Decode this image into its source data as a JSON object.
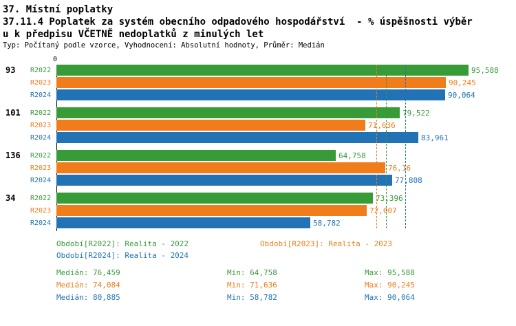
{
  "header": {
    "title": "37. Místní poplatky",
    "subtitle1": "37.11.4 Poplatek za systém obecního odpadového hospodářství  - % úspěšnosti výběr",
    "subtitle2": "u k předpisu VČETNĚ nedoplatků z minulých let",
    "meta": "Typ: Počítaný podle vzorce, Vyhodnocení: Absolutní hodnoty, Průměr: Medián"
  },
  "chart_data": {
    "type": "bar",
    "orientation": "horizontal",
    "x_origin_label": "0",
    "xlim": [
      0,
      100
    ],
    "value_format": "percent-czech-decimal-comma",
    "series": [
      {
        "id": "R2022",
        "color": "#379b37",
        "legend": "Období[R2022]: Realita - 2022",
        "median_value": 76.459,
        "stats": {
          "median": "Medián: 76,459",
          "min": "Min: 64,758",
          "max": "Max: 95,588"
        }
      },
      {
        "id": "R2023",
        "color": "#f07c1a",
        "legend": "Období[R2023]: Realita - 2023",
        "median_value": 74.084,
        "stats": {
          "median": "Medián: 74,084",
          "min": "Min: 71,636",
          "max": "Max: 90,245"
        }
      },
      {
        "id": "R2024",
        "color": "#2273b6",
        "legend": "Období[R2024]: Realita - 2024",
        "median_value": 80.885,
        "stats": {
          "median": "Medián: 80,885",
          "min": "Min: 58,782",
          "max": "Max: 90,064"
        }
      }
    ],
    "groups": [
      {
        "label": "93",
        "bars": [
          {
            "series": "R2022",
            "value": 95.588,
            "label": "95,588"
          },
          {
            "series": "R2023",
            "value": 90.245,
            "label": "90,245"
          },
          {
            "series": "R2024",
            "value": 90.064,
            "label": "90,064"
          }
        ]
      },
      {
        "label": "101",
        "bars": [
          {
            "series": "R2022",
            "value": 79.522,
            "label": "79,522"
          },
          {
            "series": "R2023",
            "value": 71.636,
            "label": "71,636"
          },
          {
            "series": "R2024",
            "value": 83.961,
            "label": "83,961"
          }
        ]
      },
      {
        "label": "136",
        "bars": [
          {
            "series": "R2022",
            "value": 64.758,
            "label": "64,758"
          },
          {
            "series": "R2023",
            "value": 76.16,
            "label": "76,16"
          },
          {
            "series": "R2024",
            "value": 77.808,
            "label": "77,808"
          }
        ]
      },
      {
        "label": "34",
        "bars": [
          {
            "series": "R2022",
            "value": 73.396,
            "label": "73,396"
          },
          {
            "series": "R2023",
            "value": 72.007,
            "label": "72,007"
          },
          {
            "series": "R2024",
            "value": 58.782,
            "label": "58,782"
          }
        ]
      }
    ]
  }
}
